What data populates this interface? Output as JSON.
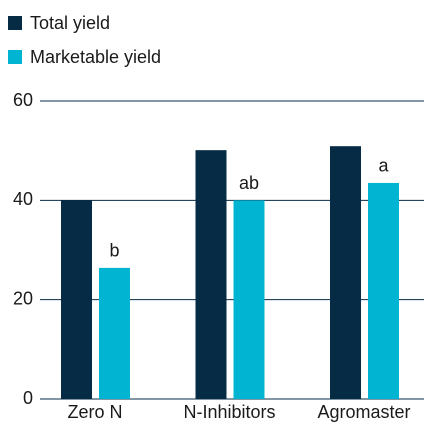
{
  "chart_data": {
    "type": "bar",
    "categories": [
      "Zero N",
      "N-Inhibitors",
      "Agromaster"
    ],
    "series": [
      {
        "name": "Total yield",
        "color": "#062b45",
        "values": [
          40,
          50.1,
          50.9
        ]
      },
      {
        "name": "Marketable yield",
        "color": "#00b4d2",
        "values": [
          26.4,
          40,
          43.5
        ],
        "annotations": [
          "b",
          "ab",
          "a"
        ]
      }
    ],
    "ylim": [
      0,
      60
    ],
    "yticks": [
      0,
      20,
      40,
      60
    ],
    "grid": true,
    "legend": "top-left"
  }
}
